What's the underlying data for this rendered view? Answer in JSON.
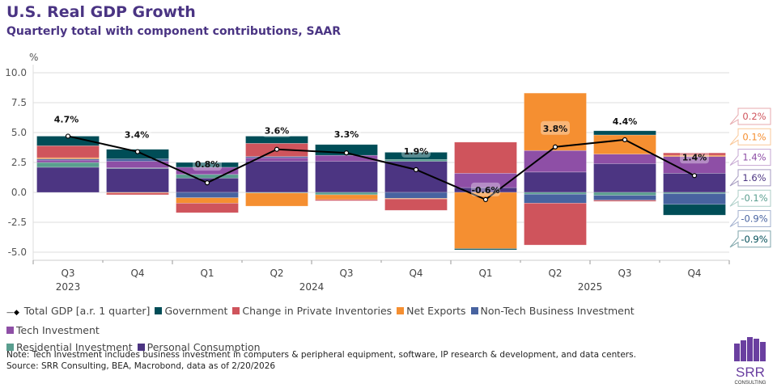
{
  "title": "U.S. Real GDP Growth",
  "subtitle": "Quarterly total with component contributions, SAAR",
  "note": "Note: Tech Investment includes business investment in computers & peripheral equipment, software, IP research & development, and data centers.",
  "source": "Source: SRR Consulting, BEA, Macrobond, data as of 2/20/2026",
  "logo": {
    "text": "SRR",
    "subtext": "CONSULTING"
  },
  "chart_data": {
    "type": "bar",
    "stacked": true,
    "ylabel": "%",
    "ylim": [
      -5,
      10
    ],
    "yticks": [
      "10.0",
      "7.5",
      "5.0",
      "2.5",
      "0.0",
      "-2.5",
      "-5.0"
    ],
    "grid": true,
    "legend_position": "bottom",
    "categories": [
      "Q3",
      "Q4",
      "Q1",
      "Q2",
      "Q3",
      "Q4",
      "Q1",
      "Q2",
      "Q3",
      "Q4"
    ],
    "years": [
      {
        "label": "2023"
      },
      {
        "label": "2024"
      },
      {
        "label": "2025"
      }
    ],
    "line": {
      "name": "Total GDP [a.r. 1 quarter]",
      "color": "#000000",
      "values": [
        4.7,
        3.4,
        0.8,
        3.6,
        3.3,
        1.9,
        -0.6,
        3.8,
        4.4,
        1.4
      ],
      "labels": [
        "4.7%",
        "3.4%",
        "0.8%",
        "3.6%",
        "3.3%",
        "1.9%",
        "-0.6%",
        "3.8%",
        "4.4%",
        "1.4%"
      ]
    },
    "series": [
      {
        "name": "Personal Consumption",
        "color": "#4c3582",
        "values": [
          2.1,
          2.0,
          1.2,
          2.6,
          2.6,
          2.6,
          0.4,
          1.7,
          2.4,
          1.6
        ]
      },
      {
        "name": "Residential Investment",
        "color": "#5a9e8f",
        "values": [
          0.4,
          0.05,
          0.3,
          -0.05,
          -0.2,
          0.15,
          0.0,
          -0.15,
          -0.25,
          -0.1
        ]
      },
      {
        "name": "Tech Investment",
        "color": "#8e4fa6",
        "values": [
          0.2,
          0.55,
          0.6,
          0.3,
          0.5,
          0.0,
          1.2,
          1.8,
          0.8,
          1.4
        ]
      },
      {
        "name": "Non-Tech Business Investment",
        "color": "#4863a0",
        "values": [
          0.1,
          0.2,
          -0.45,
          0.1,
          0.0,
          -0.5,
          0.0,
          -0.75,
          -0.4,
          -0.9
        ]
      },
      {
        "name": "Net Exports",
        "color": "#f58f31",
        "values": [
          0.1,
          -0.05,
          -0.45,
          -1.1,
          -0.4,
          -0.05,
          -4.7,
          4.8,
          1.6,
          0.1
        ]
      },
      {
        "name": "Change in Private Inventories",
        "color": "#cf545c",
        "values": [
          1.0,
          -0.15,
          -0.8,
          1.1,
          -0.1,
          -0.95,
          2.6,
          -3.5,
          -0.1,
          0.2
        ]
      },
      {
        "name": "Government",
        "color": "#004d57",
        "values": [
          0.8,
          0.8,
          0.4,
          0.6,
          0.9,
          0.6,
          -0.1,
          0.0,
          0.35,
          -0.9
        ]
      }
    ],
    "legend_order": [
      "Total GDP [a.r. 1 quarter]",
      "Government",
      "Change in Private Inventories",
      "Net Exports",
      "Non-Tech Business Investment",
      "Tech Investment",
      "Residential Investment",
      "Personal Consumption"
    ],
    "last_value_labels": [
      {
        "series": "Change in Private Inventories",
        "text": "0.2%",
        "color": "#cf545c"
      },
      {
        "series": "Net Exports",
        "text": "0.1%",
        "color": "#f58f31"
      },
      {
        "series": "Tech Investment",
        "text": "1.4%",
        "color": "#8e4fa6"
      },
      {
        "series": "Personal Consumption",
        "text": "1.6%",
        "color": "#4c3582"
      },
      {
        "series": "Residential Investment",
        "text": "-0.1%",
        "color": "#5a9e8f"
      },
      {
        "series": "Non-Tech Business Investment",
        "text": "-0.9%",
        "color": "#4863a0"
      },
      {
        "series": "Government",
        "text": "-0.9%",
        "color": "#004d57"
      }
    ]
  }
}
